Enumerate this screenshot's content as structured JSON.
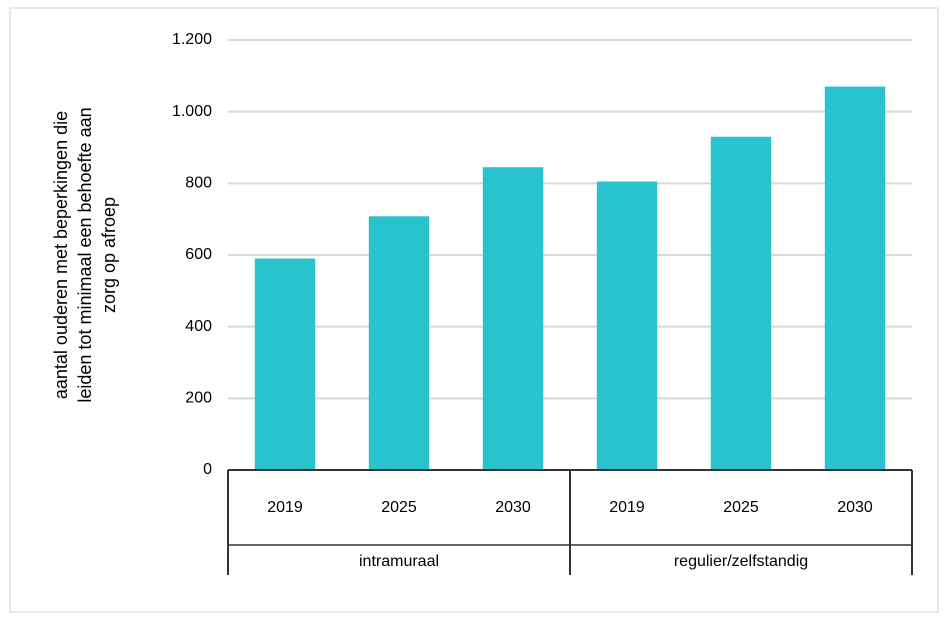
{
  "chart_data": {
    "type": "bar",
    "ylabel": [
      "aantal ouderen met beperkingen die",
      "leiden tot minimaal een behoefte aan",
      "zorg op afroep"
    ],
    "groups": [
      "intramuraal",
      "regulier/zelfstandig"
    ],
    "categories": [
      "2019",
      "2025",
      "2030",
      "2019",
      "2025",
      "2030"
    ],
    "values": [
      590,
      708,
      845,
      805,
      930,
      1070
    ],
    "color": "#29c3cd",
    "ylim": [
      0,
      1200
    ],
    "yticks": [
      0,
      200,
      400,
      600,
      800,
      {
        "value": 1000,
        "label": "1.000"
      },
      {
        "value": 1200,
        "label": "1.200"
      }
    ],
    "grid": true
  }
}
